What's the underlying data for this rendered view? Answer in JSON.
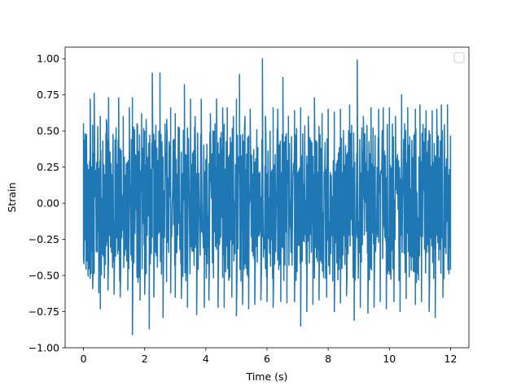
{
  "chart_data": {
    "type": "line",
    "title": "",
    "xlabel": "Time (s)",
    "ylabel": "Strain",
    "xlim": [
      -0.6,
      12.6
    ],
    "ylim": [
      -1.0,
      1.08
    ],
    "x_ticks": [
      0,
      2,
      4,
      6,
      8,
      10,
      12
    ],
    "x_tick_labels": [
      "0",
      "2",
      "4",
      "6",
      "8",
      "10",
      "12"
    ],
    "y_ticks": [
      -1.0,
      -0.75,
      -0.5,
      -0.25,
      0.0,
      0.25,
      0.5,
      0.75,
      1.0
    ],
    "y_tick_labels": [
      "−1.00",
      "−0.75",
      "−0.50",
      "−0.25",
      "0.00",
      "0.25",
      "0.50",
      "0.75",
      "1.00"
    ],
    "grid": false,
    "legend": {
      "placement": "top-right",
      "entries": []
    },
    "series": [
      {
        "color": "#1f77b4",
        "sample_rate_hz": 60,
        "x_range": [
          0,
          12
        ],
        "envelope_max": 0.55,
        "envelope_min": -0.55,
        "peaks": [
          [
            0.0,
            0.55
          ],
          [
            0.05,
            0.48
          ],
          [
            0.22,
            0.72
          ],
          [
            0.35,
            0.76
          ],
          [
            0.55,
            0.6
          ],
          [
            0.75,
            0.58
          ],
          [
            0.82,
            0.73
          ],
          [
            1.15,
            0.73
          ],
          [
            1.3,
            0.6
          ],
          [
            1.5,
            0.66
          ],
          [
            1.6,
            0.73
          ],
          [
            1.75,
            0.55
          ],
          [
            1.9,
            0.62
          ],
          [
            2.05,
            0.58
          ],
          [
            2.25,
            0.9
          ],
          [
            2.5,
            0.9
          ],
          [
            2.72,
            0.58
          ],
          [
            2.85,
            0.66
          ],
          [
            3.0,
            0.62
          ],
          [
            3.3,
            0.82
          ],
          [
            3.5,
            0.72
          ],
          [
            3.65,
            0.6
          ],
          [
            3.85,
            0.72
          ],
          [
            4.15,
            0.62
          ],
          [
            4.35,
            0.72
          ],
          [
            4.55,
            0.66
          ],
          [
            4.7,
            0.66
          ],
          [
            4.9,
            0.6
          ],
          [
            5.0,
            0.72
          ],
          [
            5.1,
            0.89
          ],
          [
            5.28,
            0.6
          ],
          [
            5.45,
            0.65
          ],
          [
            5.85,
            1.0
          ],
          [
            5.95,
            0.6
          ],
          [
            6.2,
            0.66
          ],
          [
            6.35,
            0.65
          ],
          [
            6.52,
            0.87
          ],
          [
            6.7,
            0.6
          ],
          [
            6.9,
            0.64
          ],
          [
            7.1,
            0.66
          ],
          [
            7.35,
            0.6
          ],
          [
            7.55,
            0.73
          ],
          [
            7.8,
            0.62
          ],
          [
            8.0,
            0.65
          ],
          [
            8.2,
            0.63
          ],
          [
            8.4,
            0.65
          ],
          [
            8.7,
            0.68
          ],
          [
            8.95,
            0.99
          ],
          [
            9.15,
            0.6
          ],
          [
            9.4,
            0.66
          ],
          [
            9.65,
            0.65
          ],
          [
            9.8,
            0.66
          ],
          [
            10.0,
            0.66
          ],
          [
            10.2,
            0.6
          ],
          [
            10.4,
            0.75
          ],
          [
            10.6,
            0.66
          ],
          [
            10.85,
            0.65
          ],
          [
            11.0,
            0.68
          ],
          [
            11.2,
            0.64
          ],
          [
            11.4,
            0.64
          ],
          [
            11.55,
            0.65
          ],
          [
            11.7,
            0.68
          ],
          [
            11.9,
            0.68
          ],
          [
            12.0,
            0.4
          ]
        ],
        "troughs": [
          [
            0.0,
            -0.38
          ],
          [
            0.15,
            -0.45
          ],
          [
            0.3,
            -0.59
          ],
          [
            0.5,
            -0.62
          ],
          [
            0.55,
            -0.73
          ],
          [
            0.8,
            -0.6
          ],
          [
            1.0,
            -0.63
          ],
          [
            1.2,
            -0.65
          ],
          [
            1.45,
            -0.6
          ],
          [
            1.6,
            -0.91
          ],
          [
            1.85,
            -0.67
          ],
          [
            2.0,
            -0.63
          ],
          [
            2.15,
            -0.87
          ],
          [
            2.3,
            -0.65
          ],
          [
            2.6,
            -0.79
          ],
          [
            2.85,
            -0.62
          ],
          [
            3.0,
            -0.65
          ],
          [
            3.2,
            -0.66
          ],
          [
            3.4,
            -0.72
          ],
          [
            3.7,
            -0.77
          ],
          [
            3.95,
            -0.72
          ],
          [
            4.1,
            -0.67
          ],
          [
            4.4,
            -0.72
          ],
          [
            4.6,
            -0.72
          ],
          [
            4.85,
            -0.65
          ],
          [
            5.0,
            -0.78
          ],
          [
            5.2,
            -0.7
          ],
          [
            5.4,
            -0.73
          ],
          [
            5.6,
            -0.7
          ],
          [
            5.8,
            -0.67
          ],
          [
            6.0,
            -0.68
          ],
          [
            6.2,
            -0.72
          ],
          [
            6.45,
            -0.68
          ],
          [
            6.65,
            -0.69
          ],
          [
            6.9,
            -0.68
          ],
          [
            7.1,
            -0.85
          ],
          [
            7.3,
            -0.75
          ],
          [
            7.5,
            -0.7
          ],
          [
            7.7,
            -0.67
          ],
          [
            7.95,
            -0.65
          ],
          [
            8.2,
            -0.75
          ],
          [
            8.4,
            -0.69
          ],
          [
            8.6,
            -0.64
          ],
          [
            8.85,
            -0.81
          ],
          [
            9.05,
            -0.72
          ],
          [
            9.3,
            -0.76
          ],
          [
            9.5,
            -0.72
          ],
          [
            9.7,
            -0.68
          ],
          [
            9.9,
            -0.73
          ],
          [
            10.15,
            -0.68
          ],
          [
            10.35,
            -0.75
          ],
          [
            10.55,
            -0.66
          ],
          [
            10.85,
            -0.7
          ],
          [
            11.05,
            -0.68
          ],
          [
            11.3,
            -0.75
          ],
          [
            11.5,
            -0.79
          ],
          [
            11.75,
            -0.65
          ],
          [
            11.95,
            -0.49
          ],
          [
            12.0,
            -0.46
          ]
        ]
      }
    ]
  }
}
